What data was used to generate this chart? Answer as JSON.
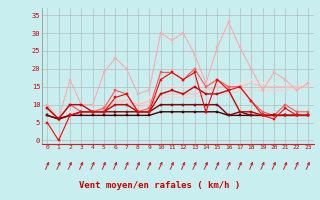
{
  "background_color": "#c8eef0",
  "grid_color": "#b0b0b0",
  "xlabel": "Vent moyen/en rafales ( km/h )",
  "xlabel_color": "#cc0000",
  "tick_color": "#cc0000",
  "arrow_color": "#cc2222",
  "x": [
    0,
    1,
    2,
    3,
    4,
    5,
    6,
    7,
    8,
    9,
    10,
    11,
    12,
    13,
    14,
    15,
    16,
    17,
    18,
    19,
    20,
    21,
    22,
    23
  ],
  "ylim": [
    -1,
    37
  ],
  "yticks": [
    0,
    5,
    10,
    15,
    20,
    25,
    30,
    35
  ],
  "lines": [
    {
      "y": [
        5,
        0,
        7,
        8,
        8,
        8,
        12,
        13,
        8,
        8,
        17,
        19,
        17,
        19,
        8,
        17,
        14,
        15,
        11,
        7,
        6,
        9,
        7,
        7
      ],
      "color": "#ff0000",
      "lw": 0.8,
      "marker": "s",
      "ms": 2.0
    },
    {
      "y": [
        9,
        6,
        10,
        10,
        8,
        8,
        10,
        10,
        8,
        8,
        13,
        14,
        13,
        15,
        13,
        13,
        14,
        8,
        8,
        7,
        7,
        7,
        7,
        7
      ],
      "color": "#cc0000",
      "lw": 1.0,
      "marker": "s",
      "ms": 1.5
    },
    {
      "y": [
        7,
        6,
        7,
        8,
        8,
        8,
        8,
        8,
        8,
        8,
        10,
        10,
        10,
        10,
        10,
        10,
        7,
        8,
        7,
        7,
        7,
        7,
        7,
        7
      ],
      "color": "#880000",
      "lw": 1.0,
      "marker": "s",
      "ms": 1.5
    },
    {
      "y": [
        7,
        6,
        7,
        7,
        7,
        7,
        7,
        7,
        7,
        7,
        8,
        8,
        8,
        8,
        8,
        8,
        7,
        7,
        7,
        7,
        7,
        7,
        7,
        7
      ],
      "color": "#440000",
      "lw": 1.0,
      "marker": "s",
      "ms": 1.5
    },
    {
      "y": [
        9,
        6,
        10,
        8,
        8,
        9,
        14,
        13,
        8,
        9,
        19,
        19,
        17,
        20,
        15,
        17,
        15,
        15,
        11,
        8,
        7,
        10,
        8,
        8
      ],
      "color": "#ff5555",
      "lw": 0.8,
      "marker": "s",
      "ms": 2.0
    },
    {
      "y": [
        10,
        6,
        17,
        10,
        10,
        19,
        23,
        20,
        13,
        14,
        30,
        28,
        30,
        24,
        16,
        26,
        33,
        26,
        20,
        14,
        19,
        17,
        14,
        16
      ],
      "color": "#ffaaaa",
      "lw": 0.8,
      "marker": "s",
      "ms": 2.0
    },
    {
      "y": [
        7,
        6,
        7,
        8,
        8,
        9,
        10,
        11,
        9,
        10,
        12,
        12,
        12,
        12,
        13,
        13,
        13,
        14,
        14,
        14,
        14,
        14,
        15,
        15
      ],
      "color": "#ffcccc",
      "lw": 0.8,
      "marker": null,
      "ms": 0
    },
    {
      "y": [
        7,
        6,
        7,
        8,
        8,
        9,
        11,
        11,
        10,
        11,
        13,
        13,
        13,
        13,
        14,
        15,
        15,
        15,
        16,
        15,
        15,
        15,
        15,
        15
      ],
      "color": "#ffbbbb",
      "lw": 0.8,
      "marker": null,
      "ms": 0
    },
    {
      "y": [
        9,
        6,
        8,
        8,
        8,
        9,
        12,
        12,
        10,
        12,
        15,
        15,
        15,
        15,
        16,
        16,
        15,
        16,
        17,
        16,
        16,
        15,
        15,
        16
      ],
      "color": "#ffdddd",
      "lw": 0.8,
      "marker": null,
      "ms": 0
    }
  ]
}
